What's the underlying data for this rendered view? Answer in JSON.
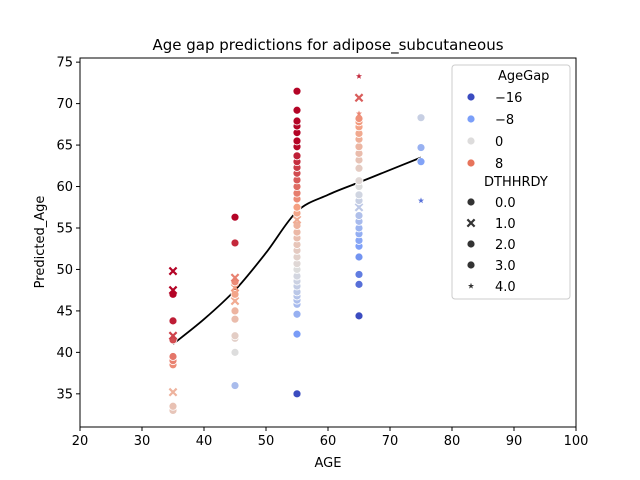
{
  "chart_data": {
    "type": "scatter",
    "title": "Age gap predictions for adipose_subcutaneous",
    "xlabel": "AGE",
    "ylabel": "Predicted_Age",
    "xlim": [
      20,
      100
    ],
    "ylim": [
      31,
      75.5
    ],
    "xticks": [
      20,
      30,
      40,
      50,
      60,
      70,
      80,
      90,
      100
    ],
    "yticks": [
      35,
      40,
      45,
      50,
      55,
      60,
      65,
      70,
      75
    ],
    "grid": false,
    "legend": {
      "placement": "top-right",
      "hue_title": "AgeGap",
      "hue_entries": [
        {
          "label": "−16",
          "color": "#3b4cc0"
        },
        {
          "label": "−8",
          "color": "#7b9ff9"
        },
        {
          "label": "0",
          "color": "#dddcdc"
        },
        {
          "label": "8",
          "color": "#e7745b"
        }
      ],
      "style_title": "DTHHRDY",
      "style_entries": [
        {
          "label": "0.0",
          "marker": "circle"
        },
        {
          "label": "1.0",
          "marker": "x"
        },
        {
          "label": "2.0",
          "marker": "circle"
        },
        {
          "label": "3.0",
          "marker": "circle"
        },
        {
          "label": "4.0",
          "marker": "star"
        }
      ]
    },
    "colormap": "coolwarm",
    "hue_range": [
      -20,
      10
    ],
    "trend_line": {
      "color": "#000000",
      "x": [
        35,
        40,
        45,
        50,
        55,
        60,
        65,
        70,
        75
      ],
      "y": [
        41,
        44,
        47.5,
        52,
        57,
        59,
        60.5,
        62,
        63.5
      ]
    },
    "points": [
      {
        "x": 35,
        "y": 33.0,
        "marker": "circle"
      },
      {
        "x": 35,
        "y": 33.5,
        "marker": "circle"
      },
      {
        "x": 35,
        "y": 35.2,
        "marker": "x"
      },
      {
        "x": 35,
        "y": 38.5,
        "marker": "circle"
      },
      {
        "x": 35,
        "y": 39.0,
        "marker": "circle"
      },
      {
        "x": 35,
        "y": 39.5,
        "marker": "circle"
      },
      {
        "x": 35,
        "y": 41.5,
        "marker": "circle"
      },
      {
        "x": 35,
        "y": 42.0,
        "marker": "x"
      },
      {
        "x": 35,
        "y": 43.8,
        "marker": "circle"
      },
      {
        "x": 35,
        "y": 47.0,
        "marker": "circle"
      },
      {
        "x": 35,
        "y": 47.5,
        "marker": "x"
      },
      {
        "x": 35,
        "y": 49.8,
        "marker": "x"
      },
      {
        "x": 45,
        "y": 36.0,
        "marker": "circle"
      },
      {
        "x": 45,
        "y": 40.0,
        "marker": "circle"
      },
      {
        "x": 45,
        "y": 41.7,
        "marker": "circle"
      },
      {
        "x": 45,
        "y": 42.0,
        "marker": "circle"
      },
      {
        "x": 45,
        "y": 44.0,
        "marker": "circle"
      },
      {
        "x": 45,
        "y": 45.0,
        "marker": "circle"
      },
      {
        "x": 45,
        "y": 46.2,
        "marker": "x"
      },
      {
        "x": 45,
        "y": 47.0,
        "marker": "circle"
      },
      {
        "x": 45,
        "y": 47.8,
        "marker": "x"
      },
      {
        "x": 45,
        "y": 48.5,
        "marker": "circle"
      },
      {
        "x": 45,
        "y": 49.0,
        "marker": "x"
      },
      {
        "x": 45,
        "y": 53.2,
        "marker": "circle"
      },
      {
        "x": 45,
        "y": 56.3,
        "marker": "circle"
      },
      {
        "x": 55,
        "y": 35.0,
        "marker": "circle"
      },
      {
        "x": 55,
        "y": 42.2,
        "marker": "circle"
      },
      {
        "x": 55,
        "y": 44.6,
        "marker": "circle"
      },
      {
        "x": 55,
        "y": 45.8,
        "marker": "circle"
      },
      {
        "x": 55,
        "y": 46.3,
        "marker": "circle"
      },
      {
        "x": 55,
        "y": 46.8,
        "marker": "circle"
      },
      {
        "x": 55,
        "y": 47.3,
        "marker": "circle"
      },
      {
        "x": 55,
        "y": 48.0,
        "marker": "circle"
      },
      {
        "x": 55,
        "y": 48.6,
        "marker": "circle"
      },
      {
        "x": 55,
        "y": 49.2,
        "marker": "circle"
      },
      {
        "x": 55,
        "y": 50.0,
        "marker": "circle"
      },
      {
        "x": 55,
        "y": 50.7,
        "marker": "circle"
      },
      {
        "x": 55,
        "y": 51.5,
        "marker": "circle"
      },
      {
        "x": 55,
        "y": 52.3,
        "marker": "circle"
      },
      {
        "x": 55,
        "y": 53.0,
        "marker": "circle"
      },
      {
        "x": 55,
        "y": 53.8,
        "marker": "circle"
      },
      {
        "x": 55,
        "y": 54.5,
        "marker": "circle"
      },
      {
        "x": 55,
        "y": 55.3,
        "marker": "circle"
      },
      {
        "x": 55,
        "y": 56.0,
        "marker": "x"
      },
      {
        "x": 55,
        "y": 56.8,
        "marker": "circle"
      },
      {
        "x": 55,
        "y": 57.5,
        "marker": "circle"
      },
      {
        "x": 55,
        "y": 58.5,
        "marker": "circle"
      },
      {
        "x": 55,
        "y": 59.2,
        "marker": "circle"
      },
      {
        "x": 55,
        "y": 60.0,
        "marker": "circle"
      },
      {
        "x": 55,
        "y": 60.8,
        "marker": "circle"
      },
      {
        "x": 55,
        "y": 61.6,
        "marker": "circle"
      },
      {
        "x": 55,
        "y": 62.3,
        "marker": "circle"
      },
      {
        "x": 55,
        "y": 63.0,
        "marker": "circle"
      },
      {
        "x": 55,
        "y": 63.7,
        "marker": "circle"
      },
      {
        "x": 55,
        "y": 64.8,
        "marker": "circle"
      },
      {
        "x": 55,
        "y": 65.5,
        "marker": "circle"
      },
      {
        "x": 55,
        "y": 66.5,
        "marker": "circle"
      },
      {
        "x": 55,
        "y": 67.3,
        "marker": "circle"
      },
      {
        "x": 55,
        "y": 67.9,
        "marker": "circle"
      },
      {
        "x": 55,
        "y": 69.2,
        "marker": "circle"
      },
      {
        "x": 55,
        "y": 71.5,
        "marker": "circle"
      },
      {
        "x": 65,
        "y": 44.4,
        "marker": "circle"
      },
      {
        "x": 65,
        "y": 48.2,
        "marker": "circle"
      },
      {
        "x": 65,
        "y": 49.4,
        "marker": "circle"
      },
      {
        "x": 65,
        "y": 51.5,
        "marker": "circle"
      },
      {
        "x": 65,
        "y": 52.8,
        "marker": "circle"
      },
      {
        "x": 65,
        "y": 53.5,
        "marker": "circle"
      },
      {
        "x": 65,
        "y": 54.3,
        "marker": "circle"
      },
      {
        "x": 65,
        "y": 55.0,
        "marker": "circle"
      },
      {
        "x": 65,
        "y": 55.8,
        "marker": "circle"
      },
      {
        "x": 65,
        "y": 56.5,
        "marker": "circle"
      },
      {
        "x": 65,
        "y": 57.5,
        "marker": "x"
      },
      {
        "x": 65,
        "y": 58.3,
        "marker": "circle"
      },
      {
        "x": 65,
        "y": 59.0,
        "marker": "circle"
      },
      {
        "x": 65,
        "y": 60.0,
        "marker": "circle"
      },
      {
        "x": 65,
        "y": 60.7,
        "marker": "circle"
      },
      {
        "x": 65,
        "y": 62.2,
        "marker": "circle"
      },
      {
        "x": 65,
        "y": 63.2,
        "marker": "circle"
      },
      {
        "x": 65,
        "y": 64.0,
        "marker": "circle"
      },
      {
        "x": 65,
        "y": 64.8,
        "marker": "circle"
      },
      {
        "x": 65,
        "y": 65.7,
        "marker": "circle"
      },
      {
        "x": 65,
        "y": 66.4,
        "marker": "circle"
      },
      {
        "x": 65,
        "y": 67.2,
        "marker": "circle"
      },
      {
        "x": 65,
        "y": 67.8,
        "marker": "circle"
      },
      {
        "x": 65,
        "y": 68.2,
        "marker": "circle"
      },
      {
        "x": 65,
        "y": 68.8,
        "marker": "star"
      },
      {
        "x": 65,
        "y": 70.7,
        "marker": "x"
      },
      {
        "x": 65,
        "y": 73.3,
        "marker": "star"
      },
      {
        "x": 75,
        "y": 58.3,
        "marker": "star"
      },
      {
        "x": 75,
        "y": 63.0,
        "marker": "circle"
      },
      {
        "x": 75,
        "y": 64.7,
        "marker": "circle"
      },
      {
        "x": 75,
        "y": 68.3,
        "marker": "circle"
      }
    ]
  }
}
